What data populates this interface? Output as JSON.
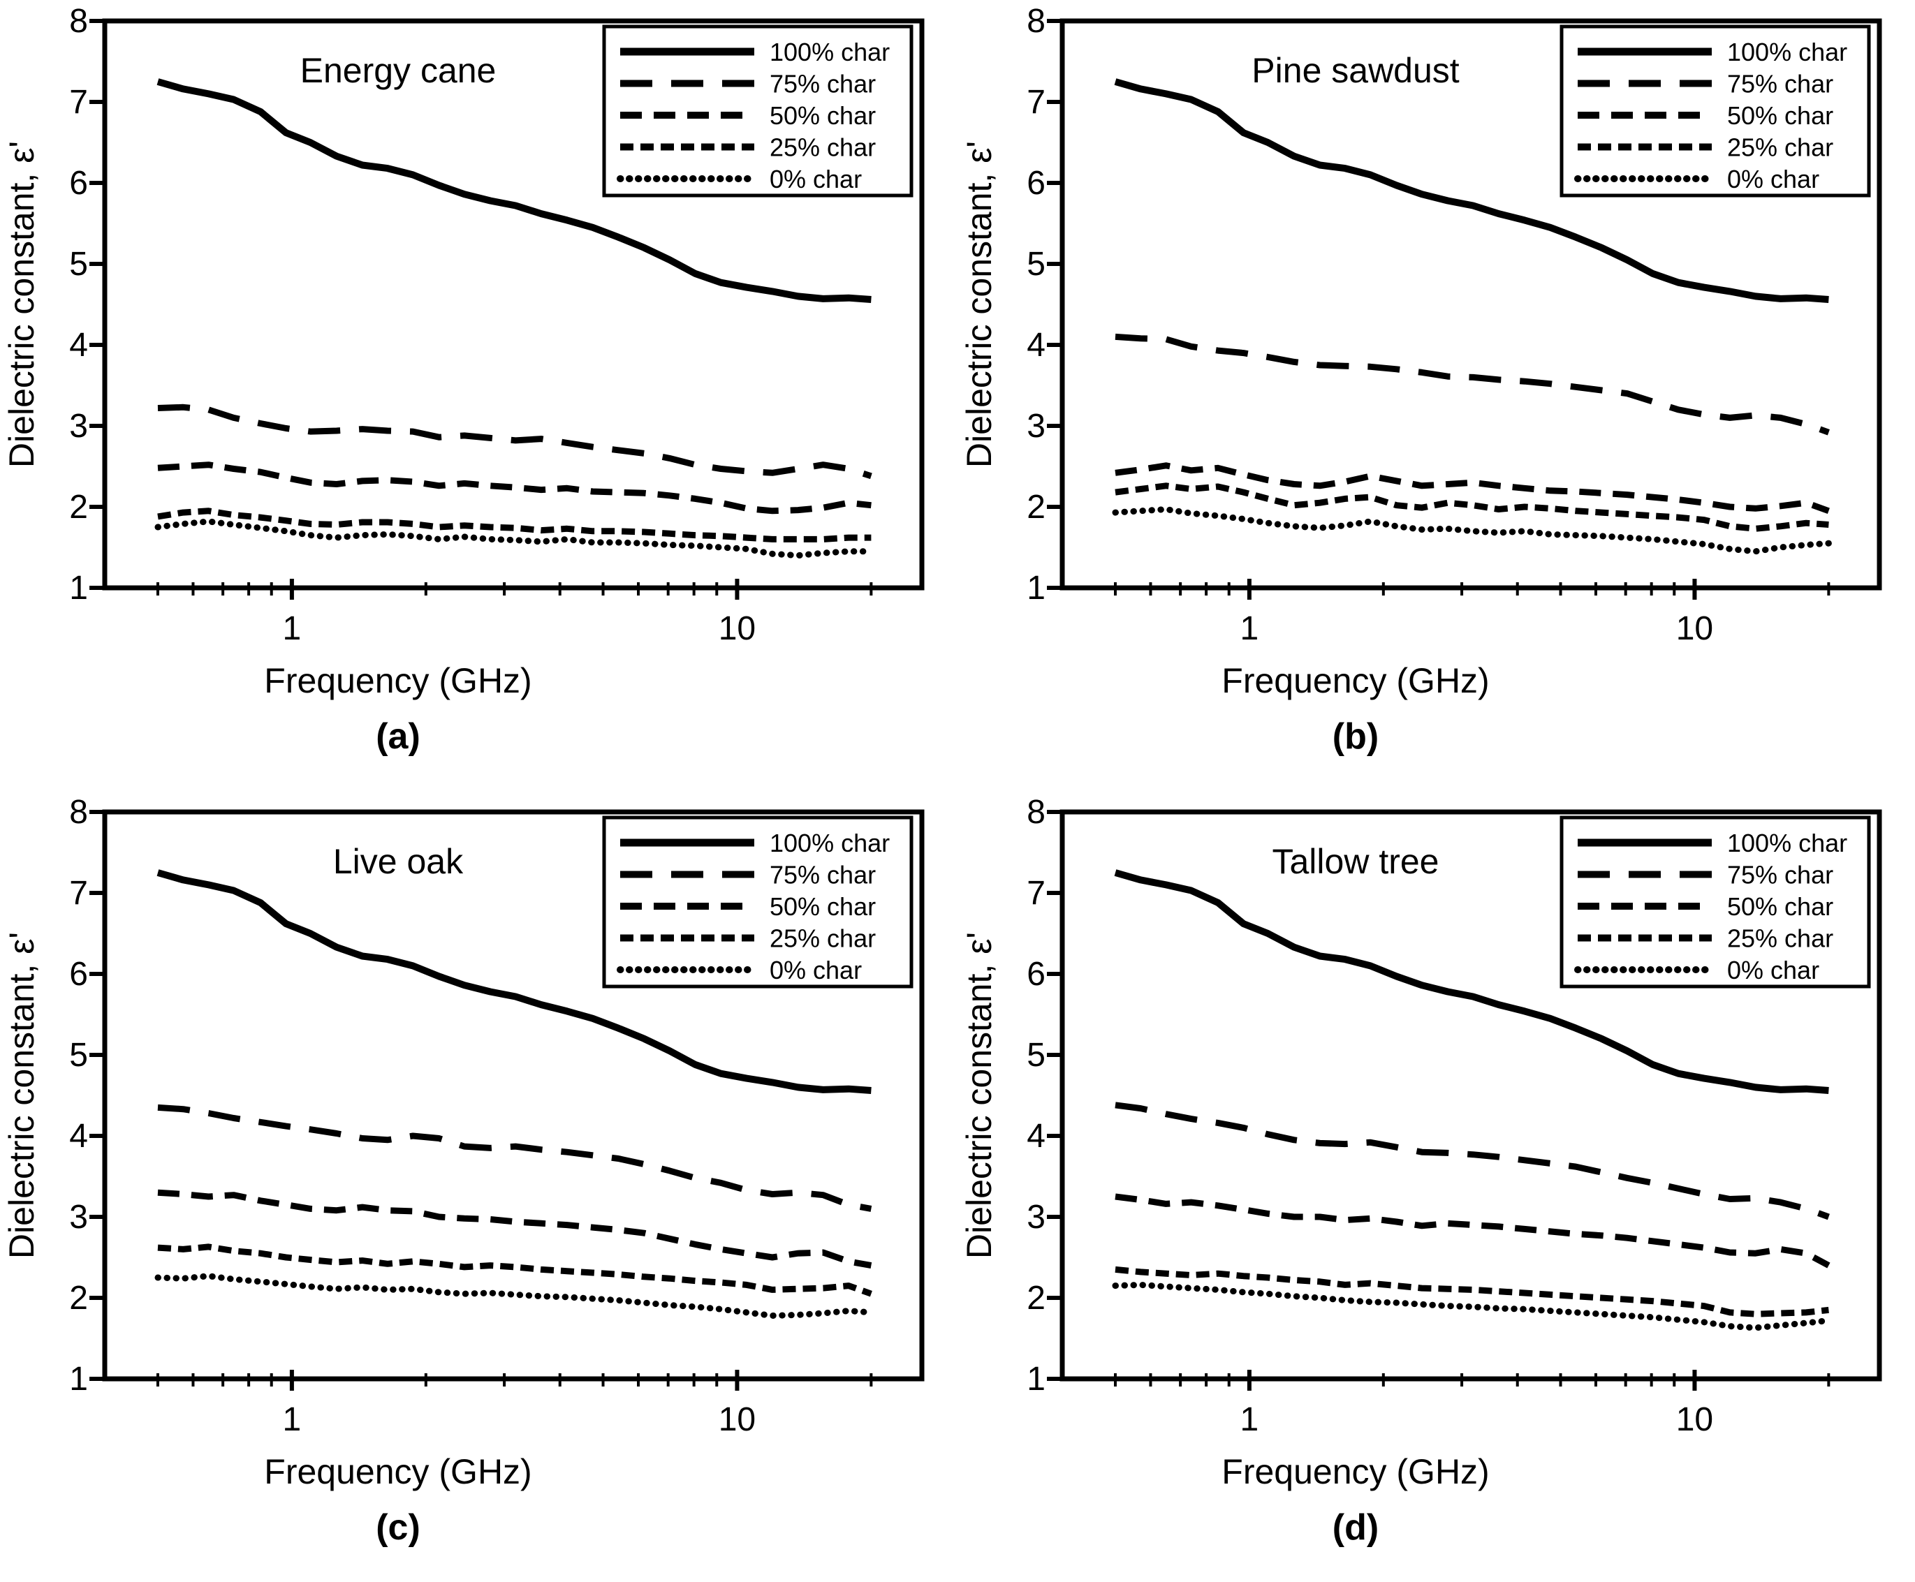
{
  "page": {
    "background": "#ffffff",
    "line_color": "#000000"
  },
  "chart_data": [
    {
      "panel": "a",
      "type": "line",
      "title": "Energy cane",
      "caption": "(a)",
      "xlabel": "Frequency (GHz)",
      "ylabel": "Dielectric constant, ε'",
      "xscale": "log",
      "xlim": [
        0.38,
        26
      ],
      "ylim": [
        1,
        8
      ],
      "yticks": [
        1,
        2,
        3,
        4,
        5,
        6,
        7,
        8
      ],
      "xticks_major": [
        1,
        10
      ],
      "xticks_minor": [
        0.5,
        0.6,
        0.7,
        0.8,
        0.9,
        2,
        3,
        4,
        5,
        6,
        7,
        8,
        9,
        20
      ],
      "grid": false,
      "legend_position": "top-right",
      "legend": [
        "100% char",
        "75% char",
        "50% char",
        "25% char",
        "0% char"
      ],
      "x_ghz": [
        0.5,
        0.57,
        0.65,
        0.74,
        0.85,
        0.97,
        1.1,
        1.26,
        1.44,
        1.64,
        1.87,
        2.14,
        2.44,
        2.79,
        3.18,
        3.63,
        4.15,
        4.74,
        5.41,
        6.18,
        7.05,
        8.05,
        9.19,
        10.5,
        12,
        13.7,
        15.6,
        17.8,
        20
      ],
      "series": [
        {
          "name": "100% char",
          "line_style": "solid",
          "y": [
            7.25,
            7.16,
            7.1,
            7.03,
            6.88,
            6.62,
            6.5,
            6.33,
            6.22,
            6.18,
            6.1,
            5.97,
            5.86,
            5.78,
            5.72,
            5.62,
            5.54,
            5.45,
            5.33,
            5.2,
            5.05,
            4.88,
            4.77,
            4.71,
            4.66,
            4.6,
            4.57,
            4.58,
            4.56
          ]
        },
        {
          "name": "75% char",
          "line_style": "long-dash",
          "y": [
            3.22,
            3.23,
            3.2,
            3.1,
            3.03,
            2.97,
            2.93,
            2.94,
            2.96,
            2.94,
            2.93,
            2.86,
            2.88,
            2.85,
            2.82,
            2.84,
            2.79,
            2.74,
            2.7,
            2.66,
            2.6,
            2.52,
            2.47,
            2.44,
            2.42,
            2.47,
            2.52,
            2.47,
            2.38
          ]
        },
        {
          "name": "50% char",
          "line_style": "dash",
          "y": [
            2.48,
            2.5,
            2.52,
            2.47,
            2.43,
            2.36,
            2.3,
            2.28,
            2.32,
            2.33,
            2.31,
            2.26,
            2.29,
            2.26,
            2.24,
            2.21,
            2.23,
            2.19,
            2.18,
            2.17,
            2.14,
            2.1,
            2.05,
            1.98,
            1.95,
            1.96,
            1.99,
            2.05,
            2.02
          ]
        },
        {
          "name": "25% char",
          "line_style": "short-dash",
          "y": [
            1.88,
            1.93,
            1.95,
            1.9,
            1.87,
            1.83,
            1.79,
            1.78,
            1.81,
            1.81,
            1.79,
            1.75,
            1.77,
            1.75,
            1.74,
            1.71,
            1.73,
            1.7,
            1.7,
            1.69,
            1.67,
            1.65,
            1.64,
            1.62,
            1.6,
            1.6,
            1.6,
            1.62,
            1.62
          ]
        },
        {
          "name": "0% char",
          "line_style": "dot",
          "y": [
            1.75,
            1.79,
            1.82,
            1.78,
            1.74,
            1.7,
            1.65,
            1.62,
            1.65,
            1.66,
            1.64,
            1.6,
            1.63,
            1.6,
            1.59,
            1.57,
            1.6,
            1.56,
            1.56,
            1.55,
            1.53,
            1.52,
            1.5,
            1.48,
            1.42,
            1.4,
            1.43,
            1.45,
            1.45
          ]
        }
      ]
    },
    {
      "panel": "b",
      "type": "line",
      "title": "Pine sawdust",
      "caption": "(b)",
      "xlabel": "Frequency (GHz)",
      "ylabel": "Dielectric constant, ε'",
      "xscale": "log",
      "xlim": [
        0.38,
        26
      ],
      "ylim": [
        1,
        8
      ],
      "yticks": [
        1,
        2,
        3,
        4,
        5,
        6,
        7,
        8
      ],
      "xticks_major": [
        1,
        10
      ],
      "xticks_minor": [
        0.5,
        0.6,
        0.7,
        0.8,
        0.9,
        2,
        3,
        4,
        5,
        6,
        7,
        8,
        9,
        20
      ],
      "grid": false,
      "legend_position": "top-right",
      "legend": [
        "100% char",
        "75% char",
        "50% char",
        "25% char",
        "0% char"
      ],
      "x_ghz": [
        0.5,
        0.57,
        0.65,
        0.74,
        0.85,
        0.97,
        1.1,
        1.26,
        1.44,
        1.64,
        1.87,
        2.14,
        2.44,
        2.79,
        3.18,
        3.63,
        4.15,
        4.74,
        5.41,
        6.18,
        7.05,
        8.05,
        9.19,
        10.5,
        12,
        13.7,
        15.6,
        17.8,
        20
      ],
      "series": [
        {
          "name": "100% char",
          "line_style": "solid",
          "y": [
            7.25,
            7.16,
            7.1,
            7.03,
            6.88,
            6.62,
            6.5,
            6.33,
            6.22,
            6.18,
            6.1,
            5.97,
            5.86,
            5.78,
            5.72,
            5.62,
            5.54,
            5.45,
            5.33,
            5.2,
            5.05,
            4.88,
            4.77,
            4.71,
            4.66,
            4.6,
            4.57,
            4.58,
            4.56
          ]
        },
        {
          "name": "75% char",
          "line_style": "long-dash",
          "y": [
            4.1,
            4.08,
            4.07,
            3.98,
            3.93,
            3.9,
            3.85,
            3.79,
            3.75,
            3.74,
            3.73,
            3.7,
            3.66,
            3.61,
            3.6,
            3.57,
            3.55,
            3.52,
            3.48,
            3.44,
            3.4,
            3.3,
            3.2,
            3.14,
            3.1,
            3.13,
            3.1,
            3.02,
            2.92
          ]
        },
        {
          "name": "50% char",
          "line_style": "dash",
          "y": [
            2.42,
            2.46,
            2.51,
            2.45,
            2.48,
            2.4,
            2.33,
            2.28,
            2.26,
            2.31,
            2.38,
            2.32,
            2.26,
            2.28,
            2.3,
            2.26,
            2.23,
            2.2,
            2.19,
            2.17,
            2.15,
            2.12,
            2.09,
            2.05,
            2.0,
            1.98,
            2.01,
            2.05,
            1.95
          ]
        },
        {
          "name": "25% char",
          "line_style": "short-dash",
          "y": [
            2.18,
            2.22,
            2.26,
            2.22,
            2.25,
            2.18,
            2.1,
            2.02,
            2.05,
            2.1,
            2.12,
            2.02,
            1.99,
            2.05,
            2.02,
            1.97,
            2.0,
            1.98,
            1.95,
            1.93,
            1.91,
            1.89,
            1.87,
            1.84,
            1.76,
            1.73,
            1.76,
            1.8,
            1.78
          ]
        },
        {
          "name": "0% char",
          "line_style": "dot",
          "y": [
            1.93,
            1.95,
            1.97,
            1.92,
            1.89,
            1.85,
            1.8,
            1.76,
            1.74,
            1.77,
            1.82,
            1.76,
            1.72,
            1.73,
            1.7,
            1.68,
            1.7,
            1.66,
            1.65,
            1.64,
            1.62,
            1.6,
            1.57,
            1.54,
            1.48,
            1.45,
            1.5,
            1.53,
            1.55
          ]
        }
      ]
    },
    {
      "panel": "c",
      "type": "line",
      "title": "Live oak",
      "caption": "(c)",
      "xlabel": "Frequency (GHz)",
      "ylabel": "Dielectric constant, ε'",
      "xscale": "log",
      "xlim": [
        0.38,
        26
      ],
      "ylim": [
        1,
        8
      ],
      "yticks": [
        1,
        2,
        3,
        4,
        5,
        6,
        7,
        8
      ],
      "xticks_major": [
        1,
        10
      ],
      "xticks_minor": [
        0.5,
        0.6,
        0.7,
        0.8,
        0.9,
        2,
        3,
        4,
        5,
        6,
        7,
        8,
        9,
        20
      ],
      "grid": false,
      "legend_position": "top-right",
      "legend": [
        "100% char",
        "75% char",
        "50% char",
        "25% char",
        "0% char"
      ],
      "x_ghz": [
        0.5,
        0.57,
        0.65,
        0.74,
        0.85,
        0.97,
        1.1,
        1.26,
        1.44,
        1.64,
        1.87,
        2.14,
        2.44,
        2.79,
        3.18,
        3.63,
        4.15,
        4.74,
        5.41,
        6.18,
        7.05,
        8.05,
        9.19,
        10.5,
        12,
        13.7,
        15.6,
        17.8,
        20
      ],
      "series": [
        {
          "name": "100% char",
          "line_style": "solid",
          "y": [
            7.25,
            7.16,
            7.1,
            7.03,
            6.88,
            6.62,
            6.5,
            6.33,
            6.22,
            6.18,
            6.1,
            5.97,
            5.86,
            5.78,
            5.72,
            5.62,
            5.54,
            5.45,
            5.33,
            5.2,
            5.05,
            4.88,
            4.77,
            4.71,
            4.66,
            4.6,
            4.57,
            4.58,
            4.56
          ]
        },
        {
          "name": "75% char",
          "line_style": "long-dash",
          "y": [
            4.35,
            4.33,
            4.28,
            4.22,
            4.17,
            4.12,
            4.08,
            4.03,
            3.97,
            3.95,
            4.0,
            3.97,
            3.87,
            3.85,
            3.87,
            3.83,
            3.8,
            3.76,
            3.72,
            3.65,
            3.57,
            3.48,
            3.42,
            3.33,
            3.28,
            3.3,
            3.27,
            3.15,
            3.1
          ]
        },
        {
          "name": "50% char",
          "line_style": "dash",
          "y": [
            3.3,
            3.28,
            3.25,
            3.27,
            3.2,
            3.15,
            3.1,
            3.08,
            3.12,
            3.08,
            3.07,
            3.0,
            2.98,
            2.97,
            2.94,
            2.92,
            2.9,
            2.87,
            2.84,
            2.8,
            2.73,
            2.66,
            2.6,
            2.55,
            2.5,
            2.55,
            2.56,
            2.45,
            2.4
          ]
        },
        {
          "name": "25% char",
          "line_style": "short-dash",
          "y": [
            2.62,
            2.6,
            2.63,
            2.58,
            2.55,
            2.5,
            2.47,
            2.44,
            2.46,
            2.42,
            2.45,
            2.42,
            2.38,
            2.4,
            2.38,
            2.35,
            2.33,
            2.31,
            2.29,
            2.26,
            2.24,
            2.21,
            2.19,
            2.16,
            2.1,
            2.11,
            2.12,
            2.15,
            2.05
          ]
        },
        {
          "name": "0% char",
          "line_style": "dot",
          "y": [
            2.25,
            2.24,
            2.27,
            2.23,
            2.2,
            2.17,
            2.14,
            2.11,
            2.13,
            2.1,
            2.11,
            2.07,
            2.05,
            2.06,
            2.04,
            2.02,
            2.01,
            1.99,
            1.97,
            1.94,
            1.91,
            1.89,
            1.86,
            1.82,
            1.78,
            1.79,
            1.81,
            1.84,
            1.82
          ]
        }
      ]
    },
    {
      "panel": "d",
      "type": "line",
      "title": "Tallow tree",
      "caption": "(d)",
      "xlabel": "Frequency (GHz)",
      "ylabel": "Dielectric constant, ε'",
      "xscale": "log",
      "xlim": [
        0.38,
        26
      ],
      "ylim": [
        1,
        8
      ],
      "yticks": [
        1,
        2,
        3,
        4,
        5,
        6,
        7,
        8
      ],
      "xticks_major": [
        1,
        10
      ],
      "xticks_minor": [
        0.5,
        0.6,
        0.7,
        0.8,
        0.9,
        2,
        3,
        4,
        5,
        6,
        7,
        8,
        9,
        20
      ],
      "grid": false,
      "legend_position": "top-right",
      "legend": [
        "100% char",
        "75% char",
        "50% char",
        "25% char",
        "0% char"
      ],
      "x_ghz": [
        0.5,
        0.57,
        0.65,
        0.74,
        0.85,
        0.97,
        1.1,
        1.26,
        1.44,
        1.64,
        1.87,
        2.14,
        2.44,
        2.79,
        3.18,
        3.63,
        4.15,
        4.74,
        5.41,
        6.18,
        7.05,
        8.05,
        9.19,
        10.5,
        12,
        13.7,
        15.6,
        17.8,
        20
      ],
      "series": [
        {
          "name": "100% char",
          "line_style": "solid",
          "y": [
            7.25,
            7.16,
            7.1,
            7.03,
            6.88,
            6.62,
            6.5,
            6.33,
            6.22,
            6.18,
            6.1,
            5.97,
            5.86,
            5.78,
            5.72,
            5.62,
            5.54,
            5.45,
            5.33,
            5.2,
            5.05,
            4.88,
            4.77,
            4.71,
            4.66,
            4.6,
            4.57,
            4.58,
            4.56
          ]
        },
        {
          "name": "75% char",
          "line_style": "long-dash",
          "y": [
            4.38,
            4.34,
            4.27,
            4.21,
            4.16,
            4.1,
            4.02,
            3.95,
            3.91,
            3.9,
            3.92,
            3.86,
            3.8,
            3.79,
            3.77,
            3.74,
            3.7,
            3.66,
            3.62,
            3.55,
            3.48,
            3.42,
            3.35,
            3.28,
            3.22,
            3.23,
            3.18,
            3.1,
            3.0
          ]
        },
        {
          "name": "50% char",
          "line_style": "dash",
          "y": [
            3.25,
            3.21,
            3.16,
            3.18,
            3.14,
            3.09,
            3.04,
            3.0,
            3.0,
            2.96,
            2.98,
            2.94,
            2.89,
            2.92,
            2.9,
            2.88,
            2.85,
            2.82,
            2.79,
            2.77,
            2.74,
            2.7,
            2.66,
            2.62,
            2.56,
            2.55,
            2.6,
            2.55,
            2.4
          ]
        },
        {
          "name": "25% char",
          "line_style": "short-dash",
          "y": [
            2.35,
            2.32,
            2.3,
            2.28,
            2.3,
            2.27,
            2.25,
            2.22,
            2.2,
            2.16,
            2.18,
            2.15,
            2.12,
            2.11,
            2.1,
            2.08,
            2.06,
            2.04,
            2.02,
            2.0,
            1.98,
            1.96,
            1.93,
            1.9,
            1.82,
            1.8,
            1.81,
            1.82,
            1.85
          ]
        },
        {
          "name": "0% char",
          "line_style": "dot",
          "y": [
            2.15,
            2.16,
            2.14,
            2.12,
            2.1,
            2.07,
            2.05,
            2.02,
            2.0,
            1.97,
            1.95,
            1.94,
            1.92,
            1.9,
            1.89,
            1.87,
            1.86,
            1.84,
            1.82,
            1.8,
            1.78,
            1.76,
            1.73,
            1.7,
            1.65,
            1.63,
            1.66,
            1.69,
            1.72
          ]
        }
      ]
    }
  ]
}
